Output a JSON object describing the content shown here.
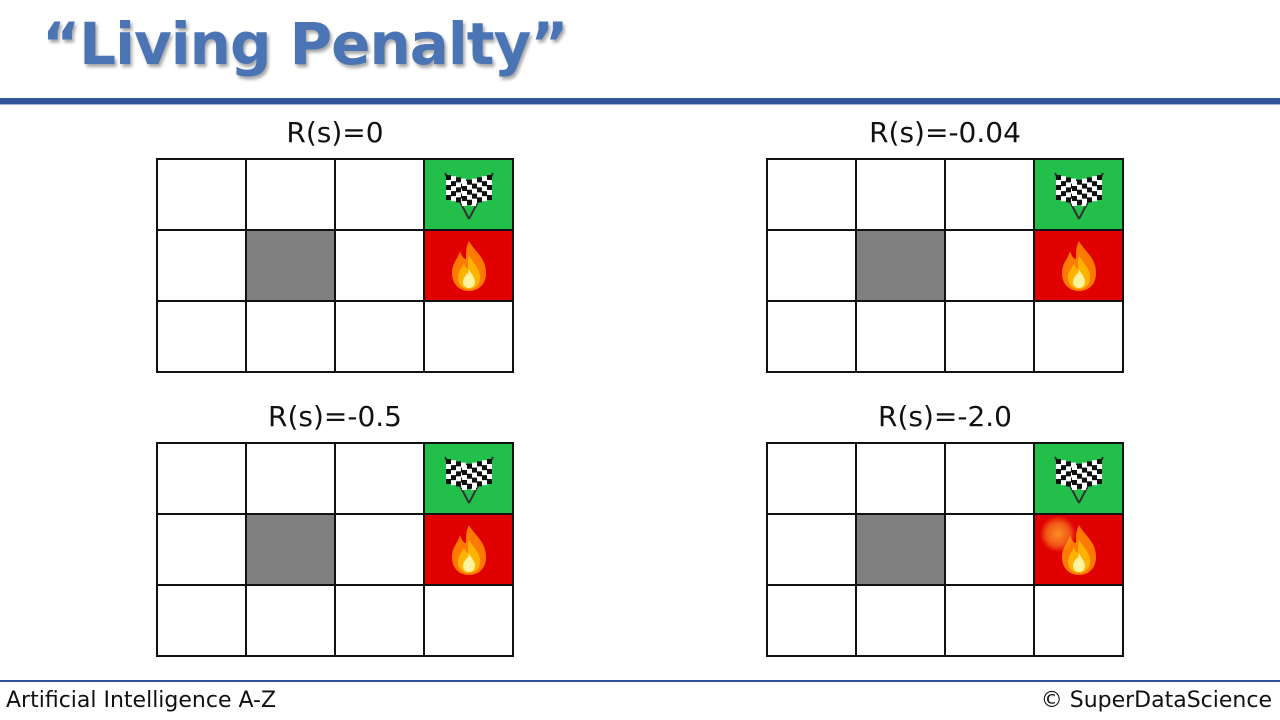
{
  "slide": {
    "title": "“Living Penalty”",
    "footer_left": "Artificial Intelligence A-Z",
    "footer_right": "© SuperDataScience"
  },
  "panels": [
    {
      "label": "R(s)=0"
    },
    {
      "label": "R(s)=-0.04"
    },
    {
      "label": "R(s)=-0.5"
    },
    {
      "label": "R(s)=-2.0"
    }
  ],
  "grid": {
    "rows": 3,
    "cols": 4,
    "cells": [
      [
        "empty",
        "empty",
        "empty",
        "goal"
      ],
      [
        "empty",
        "wall",
        "empty",
        "fire"
      ],
      [
        "empty",
        "empty",
        "empty",
        "empty"
      ]
    ]
  },
  "icons": {
    "goal": "checkered-flags-icon",
    "fire": "fire-icon"
  },
  "colors": {
    "title": "#4a74b4",
    "rule": "#2f5597",
    "goal": "#22c04a",
    "fire": "#e00000",
    "wall": "#808080"
  }
}
